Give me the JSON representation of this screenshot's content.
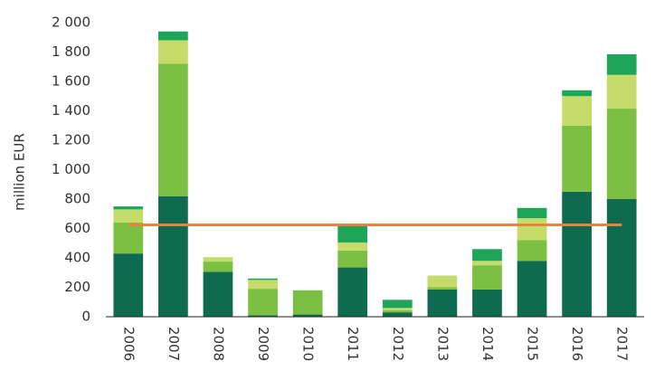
{
  "chart_data": {
    "type": "bar",
    "stacked": true,
    "y_label": "million EUR",
    "categories": [
      "2006",
      "2007",
      "2008",
      "2009",
      "2010",
      "2011",
      "2012",
      "2013",
      "2014",
      "2015",
      "2016",
      "2017"
    ],
    "series": [
      {
        "color": "#0f6b4f",
        "values": [
          430,
          820,
          305,
          10,
          15,
          335,
          30,
          185,
          185,
          380,
          850,
          800
        ]
      },
      {
        "color": "#7bbf43",
        "values": [
          210,
          900,
          70,
          180,
          165,
          115,
          15,
          15,
          165,
          140,
          450,
          615
        ]
      },
      {
        "color": "#c5dc6a",
        "values": [
          90,
          160,
          30,
          60,
          0,
          55,
          15,
          80,
          30,
          150,
          200,
          230
        ]
      },
      {
        "color": "#1ea55a",
        "values": [
          20,
          60,
          0,
          10,
          0,
          115,
          55,
          0,
          80,
          70,
          40,
          140
        ]
      }
    ],
    "reference_line": {
      "value": 625,
      "color": "#e8833a"
    },
    "ylim": [
      0,
      2000
    ],
    "yticks": [
      0,
      200,
      400,
      600,
      800,
      {
        "value": 1000,
        "label": "1 000"
      },
      {
        "value": 1200,
        "label": "1 200"
      },
      {
        "value": 1400,
        "label": "1 400"
      },
      {
        "value": 1600,
        "label": "1 600"
      },
      {
        "value": 1800,
        "label": "1 800"
      },
      {
        "value": 2000,
        "label": "2 000"
      }
    ],
    "grid": false
  }
}
